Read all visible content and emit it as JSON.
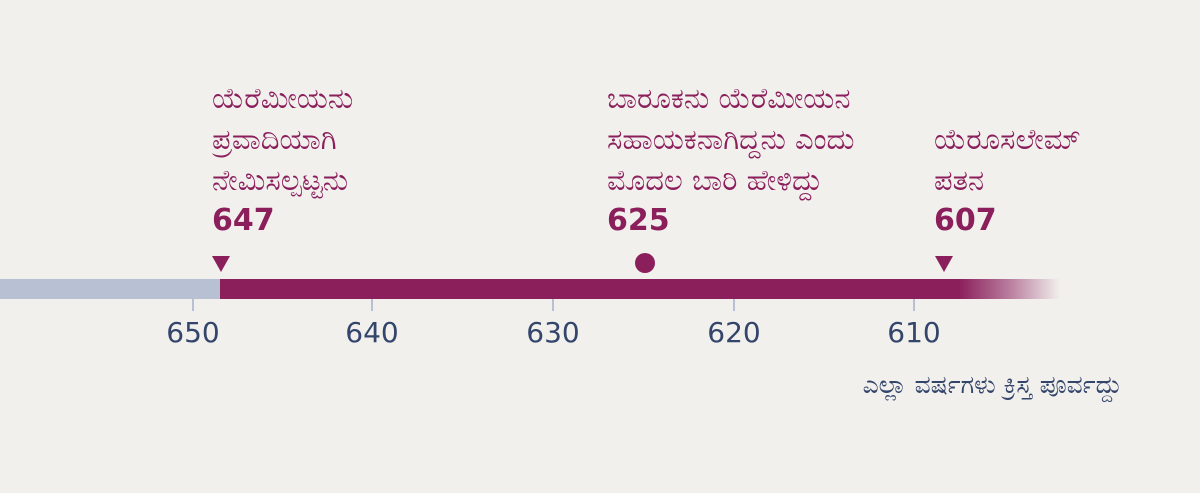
{
  "events": [
    {
      "label_lines": [
        "ಯೆರೆಮೀಯನು",
        "ಪ್ರವಾದಿಯಾಗಿ",
        "ನೇಮಿಸಲ್ಪಟ್ಟನು"
      ],
      "year": "647",
      "marker": "triangle"
    },
    {
      "label_lines": [
        "ಬಾರೂಕನು ಯೆರೆಮೀಯನ",
        "ಸಹಾಯಕನಾಗಿದ್ದನು ಎಂದು",
        "ಮೊದಲ ಬಾರಿ ಹೇಳಿದ್ದು"
      ],
      "year": "625",
      "marker": "dot"
    },
    {
      "label_lines": [
        "ಯೆರೂಸಲೇಮ್",
        "ಪತನ"
      ],
      "year": "607",
      "marker": "triangle"
    }
  ],
  "axis": {
    "ticks": [
      "650",
      "640",
      "630",
      "620",
      "610"
    ],
    "caption": "ಎಲ್ಲಾ ವರ್ಷಗಳು ಕ್ರಿಸ್ತ ಪೂರ್ವದ್ದು"
  },
  "colors": {
    "accent": "#8b1f5c",
    "axis_text": "#34456b",
    "bar_gray": "#b8c1d4",
    "background": "#f1f0ed"
  }
}
